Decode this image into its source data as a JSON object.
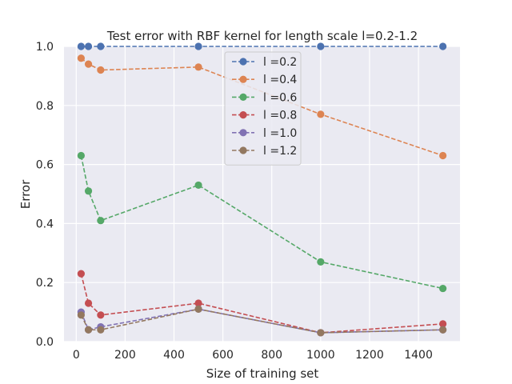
{
  "chart_data": {
    "type": "line",
    "title": "Test error with RBF kernel for length scale l=0.2-1.2",
    "xlabel": "Size of training set",
    "ylabel": "Error",
    "xlim": [
      -50,
      1570
    ],
    "ylim": [
      0.0,
      1.0
    ],
    "xticks": [
      0,
      200,
      400,
      600,
      800,
      1000,
      1200,
      1400
    ],
    "yticks": [
      0.0,
      0.2,
      0.4,
      0.6,
      0.8,
      1.0
    ],
    "grid": true,
    "legend_position": "top-center",
    "x": [
      20,
      50,
      100,
      500,
      1000,
      1500
    ],
    "series": [
      {
        "name": "l =0.2",
        "color": "#4c72b0",
        "values": [
          1.0,
          1.0,
          1.0,
          1.0,
          1.0,
          1.0
        ]
      },
      {
        "name": "l =0.4",
        "color": "#dd8452",
        "values": [
          0.96,
          0.94,
          0.92,
          0.93,
          0.77,
          0.63
        ]
      },
      {
        "name": "l =0.6",
        "color": "#55a868",
        "values": [
          0.63,
          0.51,
          0.41,
          0.53,
          0.27,
          0.18
        ]
      },
      {
        "name": "l =0.8",
        "color": "#c44e52",
        "values": [
          0.23,
          0.13,
          0.09,
          0.13,
          0.03,
          0.06
        ]
      },
      {
        "name": "l =1.0",
        "color": "#8172b3",
        "values": [
          0.1,
          0.04,
          0.05,
          0.11,
          0.03,
          0.04
        ]
      },
      {
        "name": "l =1.2",
        "color": "#937860",
        "values": [
          0.09,
          0.04,
          0.04,
          0.11,
          0.03,
          0.04
        ]
      }
    ]
  }
}
